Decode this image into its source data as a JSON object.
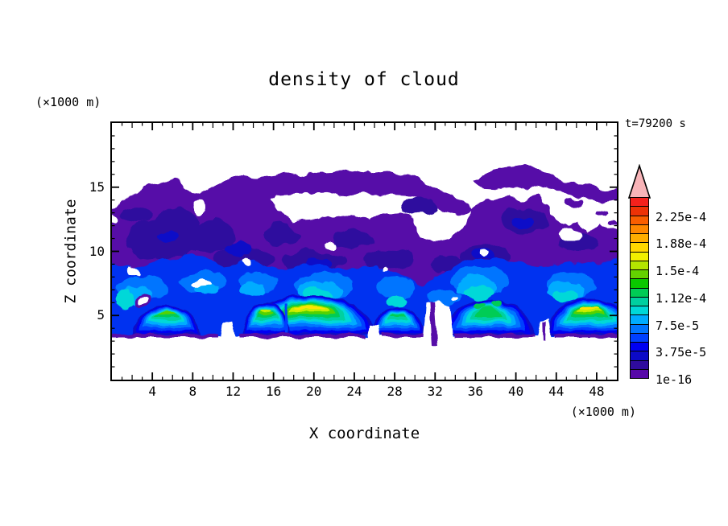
{
  "figure": {
    "title": "density of cloud",
    "timestamp": "t=79200 s",
    "x_axis_label": "X coordinate",
    "y_axis_label": "Z coordinate",
    "x_axis_unit": "(×1000 m)",
    "y_axis_unit": "(×1000 m)"
  },
  "chart_data": {
    "type": "heatmap",
    "title": "density of cloud",
    "subtitle": "t=79200 s",
    "xlabel": "X coordinate",
    "ylabel": "Z coordinate",
    "axis_units": "(×1000 m)",
    "x_range": [
      0,
      50
    ],
    "y_range": [
      0,
      20
    ],
    "x_major_ticks": [
      4,
      8,
      12,
      16,
      20,
      24,
      28,
      32,
      36,
      40,
      44,
      48
    ],
    "x_minor_step": 1,
    "y_major_ticks": [
      5,
      10,
      15
    ],
    "y_minor_step": 1,
    "grid": false,
    "legend_position": "right-colorbar",
    "colorbar": {
      "tick_labels_bottom_to_top": [
        "1e-16",
        "3.75e-5",
        "7.5e-5",
        "1.12e-4",
        "1.5e-4",
        "1.88e-4",
        "2.25e-4"
      ],
      "label_every_n_segments": 3,
      "segment_step": 1.25e-05,
      "segment_colors_bottom_to_top": [
        "#5708a8",
        "#2f0b9e",
        "#0c0ac8",
        "#0000f2",
        "#0040ff",
        "#0074ff",
        "#00acff",
        "#00d8d8",
        "#00d0a0",
        "#00cc55",
        "#0ac800",
        "#64d200",
        "#b4e600",
        "#f0f000",
        "#ffd800",
        "#ffae00",
        "#ff8800",
        "#fa5e00",
        "#ee3206",
        "#f4211c"
      ],
      "overflow_arrow_color": "#f8b4b8"
    },
    "field_summary": {
      "cloud_base_km": 3.4,
      "bright_cumulus_tops_km": 6.5,
      "upper_anvil_layer_km": [
        9,
        16.5
      ],
      "max_bin_reached": "1.75e-4 (yellow cores)",
      "mound_centers_x_km": [
        5.4,
        15.3,
        19.6,
        28.3,
        37.3,
        47.3
      ]
    },
    "mounds": [
      {
        "cx": 5.4,
        "halfwidth": 3.4,
        "top_km": 5.75,
        "rings": 9
      },
      {
        "cx": 28.3,
        "halfwidth": 2.7,
        "top_km": 5.6,
        "rings": 8
      },
      {
        "cx": 37.3,
        "halfwidth": 4.5,
        "top_km": 6.2,
        "rings": 8
      },
      {
        "cx": 19.6,
        "halfwidth": 6.6,
        "top_km": 6.55,
        "rings": 11
      },
      {
        "cx": 15.3,
        "halfwidth": 2.35,
        "top_km": 6.0,
        "rings": 10
      },
      {
        "cx": 47.3,
        "halfwidth": 4.2,
        "top_km": 6.3,
        "rings": 11
      }
    ],
    "mound_ring_colors_outer_to_inner": [
      "#0c0ac8",
      "#0000f2",
      "#0040ff",
      "#0074ff",
      "#00acff",
      "#00d8d8",
      "#00d0a0",
      "#00cc55",
      "#55d200",
      "#c8ee00",
      "#ffe400"
    ]
  }
}
